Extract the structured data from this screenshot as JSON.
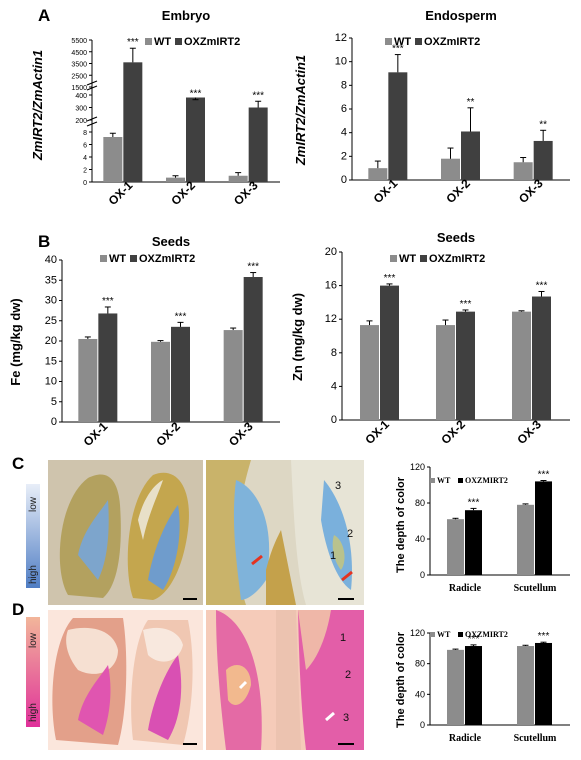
{
  "panels": {
    "A": "A",
    "B": "B",
    "C": "C",
    "D": "D"
  },
  "legend": {
    "wt": "WT",
    "ox": "OXZmIRT2"
  },
  "colors": {
    "wt": "#8c8c8c",
    "ox_dark": "#404040",
    "ox_black": "#000000"
  },
  "photo_labels": {
    "low": "low",
    "high": "high",
    "n1": "1",
    "n2": "2",
    "n3": "3"
  },
  "chart_data": [
    {
      "id": "embryo",
      "type": "bar",
      "title": "Embryo",
      "ylabel": "ZmIRT2/ZmActin1",
      "categories": [
        "OX-1",
        "OX-2",
        "OX-3"
      ],
      "series": [
        {
          "name": "WT",
          "values": [
            7.2,
            0.7,
            1.0
          ],
          "errors": [
            0.6,
            0.3,
            0.5
          ]
        },
        {
          "name": "OXZmIRT2",
          "values": [
            3600,
            380,
            300
          ],
          "errors": [
            1200,
            40,
            50
          ]
        }
      ],
      "broken_axis": true,
      "yticks_low": [
        "0",
        "2",
        "4",
        "6",
        "8"
      ],
      "yticks_high": [
        "200",
        "300",
        "400",
        "1500",
        "2500",
        "3500",
        "4500",
        "5500"
      ],
      "significance": [
        "***",
        "***",
        "***"
      ]
    },
    {
      "id": "endosperm",
      "type": "bar",
      "title": "Endosperm",
      "ylabel": "ZmIRT2/ZmActin1",
      "categories": [
        "OX-1",
        "OX-2",
        "OX-3"
      ],
      "series": [
        {
          "name": "WT",
          "values": [
            1.0,
            1.8,
            1.5
          ],
          "errors": [
            0.6,
            0.9,
            0.4
          ]
        },
        {
          "name": "OXZmIRT2",
          "values": [
            9.1,
            4.1,
            3.3
          ],
          "errors": [
            1.5,
            2.0,
            0.9
          ]
        }
      ],
      "ylim": [
        0,
        12
      ],
      "yticks": [
        "0",
        "2",
        "4",
        "6",
        "8",
        "10",
        "12"
      ],
      "significance": [
        "***",
        "**",
        "**"
      ]
    },
    {
      "id": "fe",
      "type": "bar",
      "title": "Seeds",
      "ylabel": "Fe (mg/kg dw)",
      "categories": [
        "OX-1",
        "OX-2",
        "OX-3"
      ],
      "series": [
        {
          "name": "WT",
          "values": [
            20.5,
            19.8,
            22.7
          ],
          "errors": [
            0.5,
            0.3,
            0.5
          ]
        },
        {
          "name": "OXZmIRT2",
          "values": [
            26.8,
            23.5,
            35.8
          ],
          "errors": [
            1.6,
            1.1,
            1.1
          ]
        }
      ],
      "ylim": [
        0,
        40
      ],
      "yticks": [
        "0",
        "5",
        "10",
        "15",
        "20",
        "25",
        "30",
        "35",
        "40"
      ],
      "significance": [
        "***",
        "***",
        "***"
      ]
    },
    {
      "id": "zn",
      "type": "bar",
      "title": "Seeds",
      "ylabel": "Zn (mg/kg dw)",
      "categories": [
        "OX-1",
        "OX-2",
        "OX-3"
      ],
      "series": [
        {
          "name": "WT",
          "values": [
            11.3,
            11.3,
            12.9
          ],
          "errors": [
            0.5,
            0.6,
            0.1
          ]
        },
        {
          "name": "OXZmIRT2",
          "values": [
            16.0,
            12.9,
            14.7
          ],
          "errors": [
            0.2,
            0.2,
            0.6
          ]
        }
      ],
      "ylim": [
        0,
        20
      ],
      "yticks": [
        "0",
        "4",
        "8",
        "12",
        "16",
        "20"
      ],
      "significance": [
        "***",
        "***",
        "***"
      ]
    },
    {
      "id": "colorC",
      "type": "bar",
      "title": "",
      "ylabel": "The depth of color",
      "categories": [
        "Radicle",
        "Scutellum"
      ],
      "series": [
        {
          "name": "WT",
          "values": [
            62,
            78
          ],
          "errors": [
            1.0,
            1.0
          ]
        },
        {
          "name": "OXZMIRT2",
          "values": [
            72,
            104
          ],
          "errors": [
            2.0,
            1.0
          ]
        }
      ],
      "ylim": [
        0,
        120
      ],
      "yticks": [
        "0",
        "40",
        "80",
        "120"
      ],
      "significance": [
        "***",
        "***"
      ]
    },
    {
      "id": "colorD",
      "type": "bar",
      "title": "",
      "ylabel": "The depth of color",
      "categories": [
        "Radicle",
        "Scutellum"
      ],
      "series": [
        {
          "name": "WT",
          "values": [
            98,
            103
          ],
          "errors": [
            1.0,
            1.0
          ]
        },
        {
          "name": "OXZMIRT2",
          "values": [
            103,
            107
          ],
          "errors": [
            1.5,
            1.0
          ]
        }
      ],
      "ylim": [
        0,
        120
      ],
      "yticks": [
        "0",
        "40",
        "80",
        "120"
      ],
      "significance": [
        "***",
        "***"
      ]
    }
  ]
}
